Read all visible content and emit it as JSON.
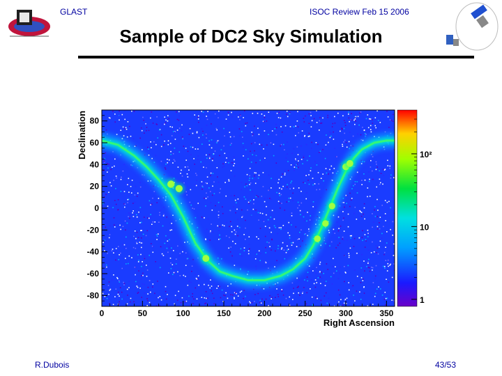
{
  "header": {
    "left": "GLAST",
    "right": "ISOC Review Feb 15 2006"
  },
  "title": "Sample of DC2 Sky Simulation",
  "footer": {
    "author": "R.Dubois",
    "page": "43/53"
  },
  "chart_data": {
    "type": "heatmap",
    "title": "",
    "xlabel": "Right Ascension",
    "ylabel": "Declination",
    "xlim": [
      0,
      360
    ],
    "ylim": [
      -90,
      90
    ],
    "x_ticks": [
      0,
      50,
      100,
      150,
      200,
      250,
      300,
      350
    ],
    "y_ticks": [
      -80,
      -60,
      -40,
      -20,
      0,
      20,
      40,
      60,
      80
    ],
    "colorbar": {
      "scale": "log",
      "range": [
        0.8,
        400
      ],
      "ticks": [
        {
          "value": 1,
          "label": "1"
        },
        {
          "value": 10,
          "label": "10"
        },
        {
          "value": 100,
          "label": "10²"
        }
      ]
    },
    "background_color": "#1a3cff",
    "galactic_plane": [
      [
        0,
        62
      ],
      [
        20,
        58
      ],
      [
        40,
        48
      ],
      [
        55,
        38
      ],
      [
        70,
        26
      ],
      [
        85,
        12
      ],
      [
        100,
        -8
      ],
      [
        115,
        -32
      ],
      [
        130,
        -48
      ],
      [
        145,
        -58
      ],
      [
        160,
        -62
      ],
      [
        180,
        -66
      ],
      [
        200,
        -66
      ],
      [
        220,
        -62
      ],
      [
        235,
        -56
      ],
      [
        250,
        -46
      ],
      [
        260,
        -34
      ],
      [
        270,
        -18
      ],
      [
        280,
        0
      ],
      [
        290,
        18
      ],
      [
        300,
        34
      ],
      [
        310,
        46
      ],
      [
        320,
        54
      ],
      [
        335,
        60
      ],
      [
        350,
        62
      ],
      [
        360,
        62
      ]
    ],
    "point_sources": [
      {
        "ra": 85,
        "dec": 22,
        "intensity": 60
      },
      {
        "ra": 95,
        "dec": 18,
        "intensity": 50
      },
      {
        "ra": 128,
        "dec": -46,
        "intensity": 45
      },
      {
        "ra": 265,
        "dec": -28,
        "intensity": 35
      },
      {
        "ra": 275,
        "dec": -14,
        "intensity": 30
      },
      {
        "ra": 283,
        "dec": 2,
        "intensity": 30
      },
      {
        "ra": 300,
        "dec": 38,
        "intensity": 40
      },
      {
        "ra": 305,
        "dec": 41,
        "intensity": 40
      }
    ]
  }
}
